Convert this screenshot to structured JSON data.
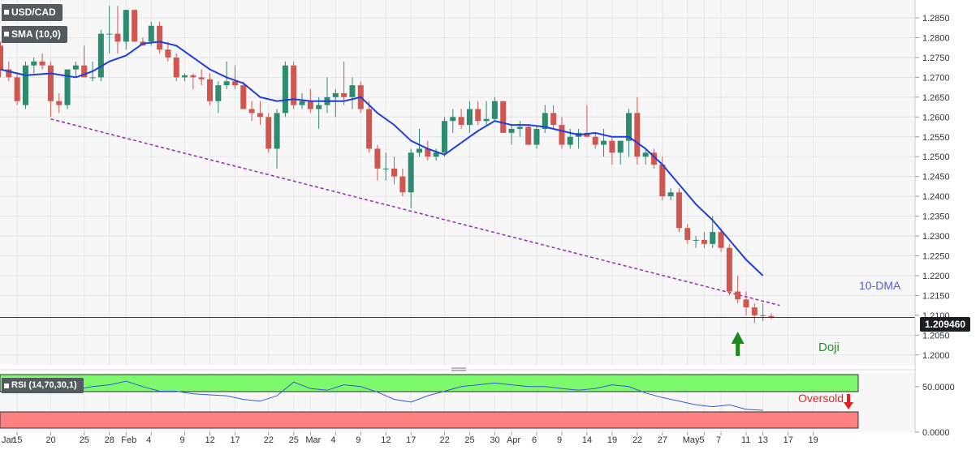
{
  "header": {
    "pair": "USD/CAD",
    "indicator": "SMA (10,0)",
    "rsi_label": "RSI (14,70,30,1)"
  },
  "price_badge": "1.209460",
  "colors": {
    "bull": "#2e8b6f",
    "bear": "#d0574f",
    "sma": "#1f3fd8",
    "trendline": "#9a35b7",
    "rsi_line": "#3a57d6",
    "overbought_fill": "#7cfa6c",
    "oversold_fill": "#ff8080"
  },
  "annotations": {
    "sma_label": "10-DMA",
    "doji": "Doji",
    "oversold": "Oversold"
  },
  "chart_data": {
    "type": "candlestick",
    "price_axis": {
      "range": [
        1.1975,
        1.2895
      ],
      "ticks": [
        "1.2000",
        "1.2050",
        "1.2100",
        "1.2150",
        "1.2200",
        "1.2250",
        "1.2300",
        "1.2350",
        "1.2400",
        "1.2450",
        "1.2500",
        "1.2550",
        "1.2600",
        "1.2650",
        "1.2700",
        "1.2750",
        "1.2800",
        "1.2850"
      ]
    },
    "rsi_axis": {
      "range": [
        0,
        65
      ],
      "ticks": [
        "0.0000",
        "50.0000"
      ]
    },
    "date_axis": {
      "labels": [
        "Jan",
        "15",
        "20",
        "25",
        "28",
        "Feb",
        "4",
        "9",
        "12",
        "17",
        "22",
        "25",
        "Mar",
        "4",
        "9",
        "12",
        "17",
        "22",
        "25",
        "30",
        "Apr",
        "6",
        "9",
        "14",
        "19",
        "22",
        "27",
        "May",
        "5",
        "7",
        "11",
        "13",
        "17",
        "19"
      ],
      "label_bar": [
        -1,
        2,
        6,
        10,
        13,
        15,
        18,
        22,
        25,
        28,
        32,
        35,
        37,
        40,
        43,
        46,
        49,
        53,
        56,
        59,
        61,
        64,
        67,
        70,
        73,
        76,
        79,
        82,
        84,
        86,
        89,
        91,
        94,
        97
      ]
    },
    "candles": [
      [
        1.278,
        1.279,
        1.27,
        1.272
      ],
      [
        1.272,
        1.274,
        1.269,
        1.27
      ],
      [
        1.27,
        1.271,
        1.263,
        1.264
      ],
      [
        1.263,
        1.274,
        1.262,
        1.273
      ],
      [
        1.273,
        1.275,
        1.271,
        1.274
      ],
      [
        1.274,
        1.276,
        1.272,
        1.273
      ],
      [
        1.273,
        1.274,
        1.26,
        1.264
      ],
      [
        1.264,
        1.266,
        1.261,
        1.263
      ],
      [
        1.263,
        1.272,
        1.262,
        1.272
      ],
      [
        1.272,
        1.274,
        1.27,
        1.273
      ],
      [
        1.273,
        1.278,
        1.27,
        1.27
      ],
      [
        1.27,
        1.274,
        1.269,
        1.27
      ],
      [
        1.27,
        1.282,
        1.269,
        1.281
      ],
      [
        1.281,
        1.288,
        1.276,
        1.281
      ],
      [
        1.281,
        1.288,
        1.276,
        1.279
      ],
      [
        1.279,
        1.287,
        1.277,
        1.287
      ],
      [
        1.287,
        1.287,
        1.279,
        1.279
      ],
      [
        1.279,
        1.28,
        1.278,
        1.278
      ],
      [
        1.279,
        1.284,
        1.278,
        1.283
      ],
      [
        1.283,
        1.284,
        1.276,
        1.277
      ],
      [
        1.277,
        1.279,
        1.274,
        1.275
      ],
      [
        1.275,
        1.276,
        1.269,
        1.27
      ],
      [
        1.27,
        1.271,
        1.269,
        1.2705
      ],
      [
        1.2705,
        1.271,
        1.267,
        1.27
      ],
      [
        1.27,
        1.272,
        1.268,
        1.2695
      ],
      [
        1.2695,
        1.271,
        1.263,
        1.264
      ],
      [
        1.264,
        1.269,
        1.261,
        1.268
      ],
      [
        1.268,
        1.274,
        1.267,
        1.269
      ],
      [
        1.269,
        1.273,
        1.267,
        1.268
      ],
      [
        1.268,
        1.269,
        1.262,
        1.262
      ],
      [
        1.262,
        1.264,
        1.259,
        1.261
      ],
      [
        1.261,
        1.264,
        1.258,
        1.26
      ],
      [
        1.26,
        1.261,
        1.251,
        1.252
      ],
      [
        1.252,
        1.262,
        1.247,
        1.261
      ],
      [
        1.261,
        1.274,
        1.26,
        1.273
      ],
      [
        1.273,
        1.274,
        1.262,
        1.263
      ],
      [
        1.263,
        1.266,
        1.262,
        1.264
      ],
      [
        1.264,
        1.267,
        1.261,
        1.262
      ],
      [
        1.262,
        1.265,
        1.257,
        1.263
      ],
      [
        1.263,
        1.27,
        1.261,
        1.265
      ],
      [
        1.265,
        1.267,
        1.26,
        1.266
      ],
      [
        1.266,
        1.274,
        1.263,
        1.265
      ],
      [
        1.265,
        1.27,
        1.262,
        1.268
      ],
      [
        1.268,
        1.269,
        1.261,
        1.262
      ],
      [
        1.262,
        1.264,
        1.251,
        1.252
      ],
      [
        1.252,
        1.253,
        1.244,
        1.247
      ],
      [
        1.247,
        1.251,
        1.244,
        1.247
      ],
      [
        1.247,
        1.25,
        1.243,
        1.245
      ],
      [
        1.245,
        1.247,
        1.24,
        1.241
      ],
      [
        1.241,
        1.252,
        1.237,
        1.251
      ],
      [
        1.251,
        1.257,
        1.25,
        1.252
      ],
      [
        1.252,
        1.254,
        1.249,
        1.25
      ],
      [
        1.25,
        1.252,
        1.249,
        1.251
      ],
      [
        1.251,
        1.26,
        1.25,
        1.259
      ],
      [
        1.259,
        1.262,
        1.256,
        1.26
      ],
      [
        1.26,
        1.262,
        1.257,
        1.258
      ],
      [
        1.258,
        1.264,
        1.256,
        1.262
      ],
      [
        1.262,
        1.264,
        1.258,
        1.259
      ],
      [
        1.259,
        1.264,
        1.258,
        1.2595
      ],
      [
        1.2595,
        1.265,
        1.259,
        1.264
      ],
      [
        1.264,
        1.264,
        1.256,
        1.256
      ],
      [
        1.256,
        1.258,
        1.253,
        1.257
      ],
      [
        1.257,
        1.259,
        1.255,
        1.2575
      ],
      [
        1.2575,
        1.258,
        1.253,
        1.253
      ],
      [
        1.253,
        1.258,
        1.252,
        1.257
      ],
      [
        1.257,
        1.263,
        1.256,
        1.261
      ],
      [
        1.261,
        1.263,
        1.257,
        1.258
      ],
      [
        1.258,
        1.26,
        1.252,
        1.253
      ],
      [
        1.253,
        1.257,
        1.252,
        1.255
      ],
      [
        1.255,
        1.257,
        1.252,
        1.256
      ],
      [
        1.256,
        1.263,
        1.255,
        1.255
      ],
      [
        1.255,
        1.256,
        1.252,
        1.253
      ],
      [
        1.253,
        1.257,
        1.25,
        1.254
      ],
      [
        1.254,
        1.255,
        1.248,
        1.251
      ],
      [
        1.251,
        1.254,
        1.248,
        1.254
      ],
      [
        1.254,
        1.262,
        1.25,
        1.261
      ],
      [
        1.261,
        1.265,
        1.248,
        1.25
      ],
      [
        1.25,
        1.252,
        1.248,
        1.251
      ],
      [
        1.251,
        1.252,
        1.247,
        1.248
      ],
      [
        1.248,
        1.25,
        1.239,
        1.24
      ],
      [
        1.24,
        1.242,
        1.239,
        1.241
      ],
      [
        1.241,
        1.242,
        1.231,
        1.232
      ],
      [
        1.232,
        1.233,
        1.228,
        1.229
      ],
      [
        1.229,
        1.23,
        1.227,
        1.229
      ],
      [
        1.229,
        1.231,
        1.227,
        1.228
      ],
      [
        1.228,
        1.235,
        1.227,
        1.231
      ],
      [
        1.231,
        1.232,
        1.226,
        1.227
      ],
      [
        1.227,
        1.228,
        1.215,
        1.216
      ],
      [
        1.216,
        1.22,
        1.213,
        1.214
      ],
      [
        1.214,
        1.216,
        1.21,
        1.212
      ],
      [
        1.212,
        1.213,
        1.208,
        1.21
      ],
      [
        1.21,
        1.213,
        1.2085,
        1.2098
      ],
      [
        1.2098,
        1.2105,
        1.209,
        1.2095
      ]
    ],
    "sma_10": [
      [
        0,
        1.272
      ],
      [
        3,
        1.2705
      ],
      [
        6,
        1.271
      ],
      [
        9,
        1.27
      ],
      [
        11,
        1.2715
      ],
      [
        13,
        1.274
      ],
      [
        15,
        1.2755
      ],
      [
        17,
        1.2785
      ],
      [
        19,
        1.279
      ],
      [
        21,
        1.278
      ],
      [
        23,
        1.275
      ],
      [
        25,
        1.272
      ],
      [
        27,
        1.27
      ],
      [
        29,
        1.2685
      ],
      [
        31,
        1.265
      ],
      [
        33,
        1.264
      ],
      [
        35,
        1.2645
      ],
      [
        37,
        1.264
      ],
      [
        39,
        1.264
      ],
      [
        41,
        1.264
      ],
      [
        43,
        1.265
      ],
      [
        45,
        1.261
      ],
      [
        47,
        1.258
      ],
      [
        49,
        1.254
      ],
      [
        51,
        1.252
      ],
      [
        53,
        1.2505
      ],
      [
        55,
        1.2535
      ],
      [
        57,
        1.2565
      ],
      [
        59,
        1.259
      ],
      [
        61,
        1.258
      ],
      [
        63,
        1.258
      ],
      [
        65,
        1.2575
      ],
      [
        67,
        1.2565
      ],
      [
        69,
        1.2555
      ],
      [
        71,
        1.256
      ],
      [
        73,
        1.255
      ],
      [
        75,
        1.255
      ],
      [
        77,
        1.252
      ],
      [
        79,
        1.248
      ],
      [
        81,
        1.243
      ],
      [
        83,
        1.238
      ],
      [
        85,
        1.234
      ],
      [
        87,
        1.229
      ],
      [
        89,
        1.224
      ],
      [
        91,
        1.22
      ]
    ],
    "trendline": [
      [
        6,
        1.2595
      ],
      [
        93,
        1.2125
      ]
    ],
    "current_price": 1.20946,
    "rsi": [
      [
        0,
        45
      ],
      [
        3,
        47
      ],
      [
        6,
        44
      ],
      [
        9,
        47
      ],
      [
        11,
        50
      ],
      [
        13,
        52
      ],
      [
        15,
        56
      ],
      [
        17,
        50
      ],
      [
        19,
        45
      ],
      [
        21,
        45
      ],
      [
        23,
        42
      ],
      [
        25,
        41
      ],
      [
        27,
        40
      ],
      [
        29,
        36
      ],
      [
        31,
        34
      ],
      [
        33,
        40
      ],
      [
        35,
        55
      ],
      [
        37,
        48
      ],
      [
        39,
        46
      ],
      [
        41,
        52
      ],
      [
        43,
        50
      ],
      [
        45,
        44
      ],
      [
        47,
        36
      ],
      [
        49,
        33
      ],
      [
        51,
        40
      ],
      [
        53,
        45
      ],
      [
        55,
        50
      ],
      [
        57,
        52
      ],
      [
        59,
        54
      ],
      [
        61,
        52
      ],
      [
        63,
        50
      ],
      [
        65,
        50
      ],
      [
        67,
        48
      ],
      [
        69,
        46
      ],
      [
        71,
        48
      ],
      [
        73,
        52
      ],
      [
        75,
        50
      ],
      [
        77,
        43
      ],
      [
        79,
        38
      ],
      [
        81,
        34
      ],
      [
        83,
        30
      ],
      [
        85,
        28
      ],
      [
        87,
        30
      ],
      [
        89,
        25
      ],
      [
        91,
        24
      ]
    ],
    "rsi_levels": {
      "overbought": 70,
      "oversold": 30
    }
  }
}
